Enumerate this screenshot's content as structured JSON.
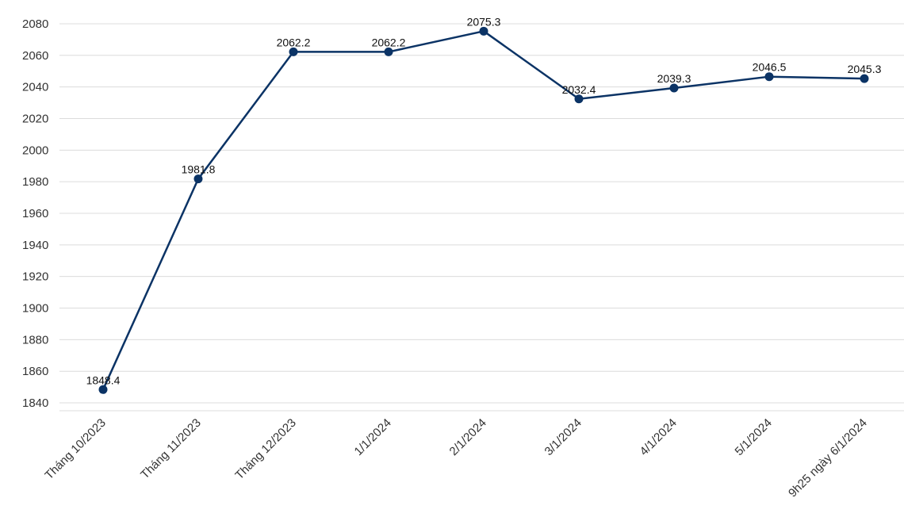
{
  "chart_data": {
    "type": "line",
    "categories": [
      "Tháng 10/2023",
      "Tháng 11/2023",
      "Tháng 12/2023",
      "1/1/2024",
      "2/1/2024",
      "3/1/2024",
      "4/1/2024",
      "5/1/2024",
      "9h25 ngày 6/1/2024"
    ],
    "series": [
      {
        "values": [
          1848.4,
          1981.8,
          2062.2,
          2062.2,
          2075.3,
          2032.4,
          2039.3,
          2046.5,
          2045.3
        ]
      }
    ],
    "data_labels": [
      "1848.4",
      "1981.8",
      "2062.2",
      "2062.2",
      "2075.3",
      "2032.4",
      "2039.3",
      "2046.5",
      "2045.3"
    ],
    "yticks": [
      1840,
      1860,
      1880,
      1900,
      1920,
      1940,
      1960,
      1980,
      2000,
      2020,
      2040,
      2060,
      2080
    ],
    "ylim": [
      1835,
      2085
    ],
    "grid": true,
    "line_color": "#0b3365",
    "marker_color": "#0b3365",
    "grid_color": "#dcdcdc"
  }
}
